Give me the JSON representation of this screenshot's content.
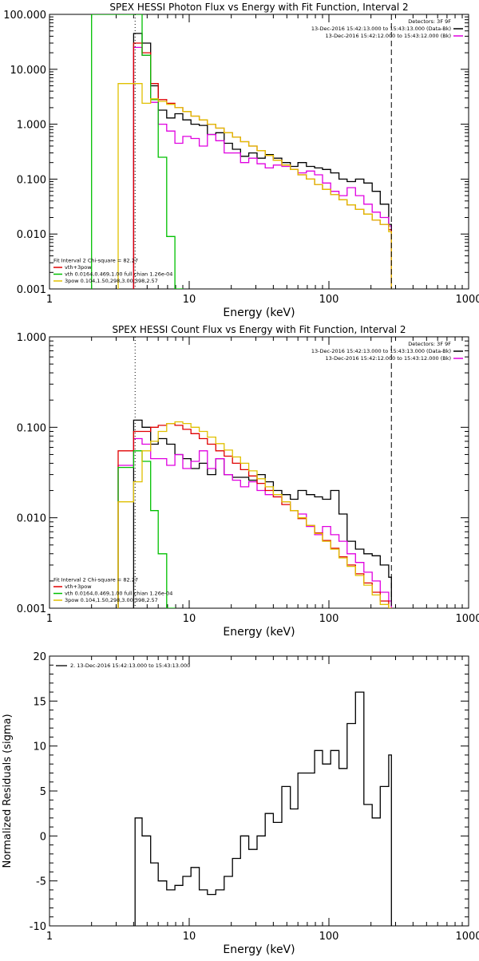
{
  "chart_data": [
    {
      "type": "line",
      "title": "SPEX HESSI Photon Flux vs Energy with Fit Function, Interval 2",
      "xlabel": "Energy (keV)",
      "ylabel": "",
      "x_scale": "log",
      "y_scale": "log",
      "xlim": [
        1,
        1000
      ],
      "ylim": [
        0.001,
        100
      ],
      "x_ticks": [
        1,
        10,
        100,
        1000
      ],
      "x_tick_labels": [
        "1",
        "10",
        "100",
        "1000"
      ],
      "y_ticks": [
        0.001,
        0.01,
        0.1,
        1,
        10,
        100
      ],
      "y_tick_labels": [
        "0.001",
        "0.010",
        "0.100",
        "1.000",
        "10.000",
        "100.000"
      ],
      "vlines": [
        {
          "x": 4.1,
          "style": "dotted"
        },
        {
          "x": 280,
          "style": "dashed"
        }
      ],
      "legend_top_right": [
        "Detectors: 3F 9F",
        "13-Dec-2016 15:42:13.000 to 15:43:13.000 (Data-Bk)",
        "13-Dec-2016 15:42:12.000 to 15:43:12.000 (Bk)"
      ],
      "legend_top_right_colors": [
        "",
        "#000000",
        "#e000e0"
      ],
      "legend_bottom_left": [
        "Fit Interval 2   Chi-square = 82.27",
        "vth+3pow",
        "vth 0.0164,0.469,1.00  full chian 1.26e-04",
        "3pow 0.104,1.50,298,3.00,398,2.57"
      ],
      "legend_bottom_left_colors": [
        "",
        "#e00000",
        "#00c000",
        "#e0c000"
      ],
      "series": [
        {
          "color": "#000000",
          "x": [
            4.0,
            4.6,
            5.3,
            6.0,
            6.9,
            7.9,
            9.0,
            10.3,
            11.8,
            13.5,
            15.5,
            17.8,
            20.4,
            23.3,
            26.7,
            30.6,
            35,
            40,
            46,
            53,
            60,
            69,
            79,
            90,
            103,
            118,
            135,
            155,
            178,
            204,
            233,
            268,
            280
          ],
          "values": [
            45,
            30,
            5.0,
            1.8,
            1.3,
            1.55,
            1.2,
            1.0,
            0.95,
            0.65,
            0.7,
            0.45,
            0.35,
            0.26,
            0.3,
            0.24,
            0.28,
            0.24,
            0.2,
            0.17,
            0.2,
            0.17,
            0.16,
            0.15,
            0.13,
            0.1,
            0.09,
            0.1,
            0.085,
            0.06,
            0.035,
            0.015,
            0.012
          ]
        },
        {
          "color": "#e000e0",
          "x": [
            4.0,
            4.6,
            5.3,
            6.0,
            6.9,
            7.9,
            9.0,
            10.3,
            11.8,
            13.5,
            15.5,
            17.8,
            20.4,
            23.3,
            26.7,
            30.6,
            35,
            40,
            46,
            53,
            60,
            69,
            79,
            90,
            103,
            118,
            135,
            155,
            178,
            204,
            233,
            268,
            280
          ],
          "values": [
            25,
            18,
            2.5,
            1.0,
            0.75,
            0.45,
            0.6,
            0.55,
            0.4,
            0.65,
            0.5,
            0.3,
            0.3,
            0.2,
            0.24,
            0.19,
            0.16,
            0.18,
            0.17,
            0.15,
            0.13,
            0.14,
            0.12,
            0.085,
            0.06,
            0.05,
            0.07,
            0.05,
            0.035,
            0.025,
            0.02,
            0.014,
            0.011
          ]
        },
        {
          "color": "#e00000",
          "x": [
            4.0,
            4.6,
            5.3,
            6.0,
            6.9,
            7.9,
            9.0,
            10.3,
            11.8,
            13.5,
            15.5,
            17.8,
            20.4,
            23.3,
            26.7,
            30.6,
            35,
            40,
            46,
            53,
            60,
            69,
            79,
            90,
            103,
            118,
            135,
            155,
            178,
            204,
            233,
            268,
            280
          ],
          "values": [
            30,
            20,
            5.5,
            2.8,
            2.4,
            2.0,
            1.7,
            1.4,
            1.2,
            1.0,
            0.85,
            0.7,
            0.58,
            0.48,
            0.4,
            0.33,
            0.27,
            0.22,
            0.18,
            0.15,
            0.12,
            0.1,
            0.08,
            0.065,
            0.052,
            0.042,
            0.034,
            0.028,
            0.023,
            0.018,
            0.015,
            0.012,
            0.001
          ]
        },
        {
          "color": "#00c000",
          "x": [
            2.0,
            4.6,
            5.3,
            6.0,
            6.9,
            7.9,
            9.0
          ],
          "values": [
            100,
            18,
            2.8,
            0.25,
            0.009,
            0.001,
            0.001
          ]
        },
        {
          "color": "#e0c000",
          "x": [
            3.1,
            4.0,
            4.6,
            5.3,
            6.0,
            6.9,
            7.9,
            9.0,
            10.3,
            11.8,
            13.5,
            15.5,
            17.8,
            20.4,
            23.3,
            26.7,
            30.6,
            35,
            40,
            46,
            53,
            60,
            69,
            79,
            90,
            103,
            118,
            135,
            155,
            178,
            204,
            233,
            268,
            280
          ],
          "values": [
            5.5,
            5.5,
            2.4,
            2.9,
            2.6,
            2.3,
            2.0,
            1.7,
            1.4,
            1.2,
            1.0,
            0.85,
            0.7,
            0.58,
            0.48,
            0.4,
            0.33,
            0.27,
            0.22,
            0.18,
            0.15,
            0.12,
            0.1,
            0.08,
            0.065,
            0.052,
            0.042,
            0.034,
            0.028,
            0.023,
            0.018,
            0.015,
            0.011,
            0.001
          ]
        }
      ]
    },
    {
      "type": "line",
      "title": "SPEX HESSI Count Flux vs Energy with Fit Function, Interval 2",
      "xlabel": "Energy (keV)",
      "ylabel": "",
      "x_scale": "log",
      "y_scale": "log",
      "xlim": [
        1,
        1000
      ],
      "ylim": [
        0.001,
        1
      ],
      "x_ticks": [
        1,
        10,
        100,
        1000
      ],
      "x_tick_labels": [
        "1",
        "10",
        "100",
        "1000"
      ],
      "y_ticks": [
        0.001,
        0.01,
        0.1,
        1
      ],
      "y_tick_labels": [
        "0.001",
        "0.010",
        "0.100",
        "1.000"
      ],
      "vlines": [
        {
          "x": 4.1,
          "style": "dotted"
        },
        {
          "x": 280,
          "style": "dashed"
        }
      ],
      "legend_top_right": [
        "Detectors: 3F 9F",
        "13-Dec-2016 15:42:13.000 to 15:43:13.000 (Data-Bk)",
        "13-Dec-2016 15:42:12.000 to 15:43:12.000 (Bk)"
      ],
      "legend_top_right_colors": [
        "",
        "#000000",
        "#e000e0"
      ],
      "legend_bottom_left": [
        "Fit Interval 2   Chi-square = 82.27",
        "vth+3pow",
        "vth 0.0164,0.469,1.00  full chian 1.26e-04",
        "3pow 0.104,1.50,298,3.00,398,2.57"
      ],
      "legend_bottom_left_colors": [
        "",
        "#e00000",
        "#00c000",
        "#e0c000"
      ],
      "series": [
        {
          "color": "#000000",
          "x": [
            4.0,
            4.6,
            5.3,
            6.0,
            6.9,
            7.9,
            9.0,
            10.3,
            11.8,
            13.5,
            15.5,
            17.8,
            20.4,
            23.3,
            26.7,
            30.6,
            35,
            40,
            46,
            53,
            60,
            69,
            79,
            90,
            103,
            118,
            135,
            155,
            178,
            204,
            233,
            268,
            280
          ],
          "values": [
            0.12,
            0.1,
            0.065,
            0.075,
            0.065,
            0.05,
            0.045,
            0.035,
            0.04,
            0.03,
            0.045,
            0.03,
            0.028,
            0.028,
            0.026,
            0.03,
            0.025,
            0.02,
            0.018,
            0.016,
            0.02,
            0.018,
            0.017,
            0.016,
            0.02,
            0.011,
            0.0055,
            0.0045,
            0.004,
            0.0038,
            0.003,
            0.0022,
            0.001
          ]
        },
        {
          "color": "#e000e0",
          "x": [
            3.1,
            4.0,
            4.6,
            5.3,
            6.0,
            6.9,
            7.9,
            9.0,
            10.3,
            11.8,
            13.5,
            15.5,
            17.8,
            20.4,
            23.3,
            26.7,
            30.6,
            35,
            40,
            46,
            53,
            60,
            69,
            79,
            90,
            103,
            118,
            135,
            155,
            178,
            204,
            233,
            268,
            280
          ],
          "values": [
            0.038,
            0.075,
            0.065,
            0.045,
            0.045,
            0.038,
            0.05,
            0.035,
            0.042,
            0.055,
            0.035,
            0.045,
            0.03,
            0.026,
            0.022,
            0.025,
            0.02,
            0.018,
            0.017,
            0.015,
            0.012,
            0.011,
            0.008,
            0.0065,
            0.008,
            0.0065,
            0.0055,
            0.004,
            0.0032,
            0.0025,
            0.002,
            0.0015,
            0.0012,
            0.001
          ]
        },
        {
          "color": "#e00000",
          "x": [
            3.1,
            4.0,
            4.6,
            5.3,
            6.0,
            6.9,
            7.9,
            9.0,
            10.3,
            11.8,
            13.5,
            15.5,
            17.8,
            20.4,
            23.3,
            26.7,
            30.6,
            35,
            40,
            46,
            53,
            60,
            69,
            79,
            90,
            103,
            118,
            135,
            155,
            178,
            204,
            233,
            268,
            280
          ],
          "values": [
            0.055,
            0.09,
            0.09,
            0.1,
            0.105,
            0.11,
            0.105,
            0.095,
            0.085,
            0.075,
            0.065,
            0.055,
            0.048,
            0.04,
            0.034,
            0.029,
            0.024,
            0.02,
            0.017,
            0.014,
            0.012,
            0.0098,
            0.0082,
            0.0068,
            0.0056,
            0.0046,
            0.0037,
            0.003,
            0.0024,
            0.0019,
            0.0015,
            0.0012,
            0.001,
            0.001
          ]
        },
        {
          "color": "#00c000",
          "x": [
            3.1,
            4.0,
            4.6,
            5.3,
            6.0,
            6.9,
            7.9
          ],
          "values": [
            0.036,
            0.055,
            0.042,
            0.012,
            0.004,
            0.001,
            0.001
          ]
        },
        {
          "color": "#e0c000",
          "x": [
            3.1,
            4.0,
            4.6,
            5.3,
            6.0,
            6.9,
            7.9,
            9.0,
            10.3,
            11.8,
            13.5,
            15.5,
            17.8,
            20.4,
            23.3,
            26.7,
            30.6,
            35,
            40,
            46,
            53,
            60,
            69,
            79,
            90,
            103,
            118,
            135,
            155,
            178,
            204,
            233,
            268,
            280
          ],
          "values": [
            0.015,
            0.025,
            0.055,
            0.07,
            0.09,
            0.11,
            0.115,
            0.11,
            0.1,
            0.09,
            0.078,
            0.066,
            0.056,
            0.047,
            0.04,
            0.033,
            0.027,
            0.022,
            0.018,
            0.015,
            0.012,
            0.01,
            0.0082,
            0.0067,
            0.0055,
            0.0045,
            0.0036,
            0.0029,
            0.0023,
            0.0018,
            0.0014,
            0.0011,
            0.001,
            0.001
          ]
        }
      ]
    },
    {
      "type": "line",
      "title": "",
      "xlabel": "Energy (keV)",
      "ylabel": "Normalized Residuals (sigma)",
      "x_scale": "log",
      "y_scale": "linear",
      "xlim": [
        1,
        1000
      ],
      "ylim": [
        -10,
        20
      ],
      "x_ticks": [
        1,
        10,
        100,
        1000
      ],
      "x_tick_labels": [
        "1",
        "10",
        "100",
        "1000"
      ],
      "y_ticks": [
        -10,
        -5,
        0,
        5,
        10,
        15,
        20
      ],
      "y_tick_labels": [
        "-10",
        "-5",
        "0",
        "5",
        "10",
        "15",
        "20"
      ],
      "legend_top_left": [
        "2. 13-Dec-2016 15:42:13.000 to 15:43:13.000"
      ],
      "series": [
        {
          "color": "#000000",
          "x": [
            4.1,
            4.6,
            5.3,
            6.0,
            6.9,
            7.9,
            9.0,
            10.3,
            11.8,
            13.5,
            15.5,
            17.8,
            20.4,
            23.3,
            26.7,
            30.6,
            35,
            40,
            46,
            53,
            60,
            69,
            79,
            90,
            103,
            118,
            135,
            155,
            178,
            204,
            233,
            268,
            280
          ],
          "values": [
            2.0,
            0.0,
            -3.0,
            -5.0,
            -6.0,
            -5.5,
            -4.5,
            -3.5,
            -6.0,
            -6.5,
            -6.0,
            -4.5,
            -2.5,
            0.0,
            -1.5,
            0.0,
            2.5,
            1.5,
            5.5,
            3.0,
            7.0,
            7.0,
            9.5,
            8.0,
            9.5,
            7.5,
            12.5,
            16.0,
            3.5,
            2.0,
            5.5,
            9.0,
            8.5
          ]
        }
      ]
    }
  ]
}
